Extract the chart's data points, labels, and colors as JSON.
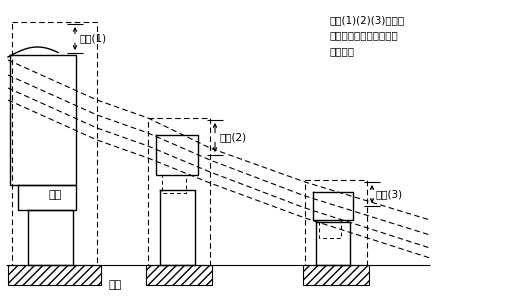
{
  "bg_color": "#ffffff",
  "fig_width": 5.08,
  "fig_height": 3.07,
  "dpi": 100,
  "annotation_text": "高さ(1)(2)(3)のうち\n最大値をもって「高さ」\nとする。",
  "label_takasa1": "高さ(1)",
  "label_takasa2": "高さ(2)",
  "label_takasa3": "高さ(3)",
  "label_ritsumen": "立面",
  "label_heimen": "平面"
}
